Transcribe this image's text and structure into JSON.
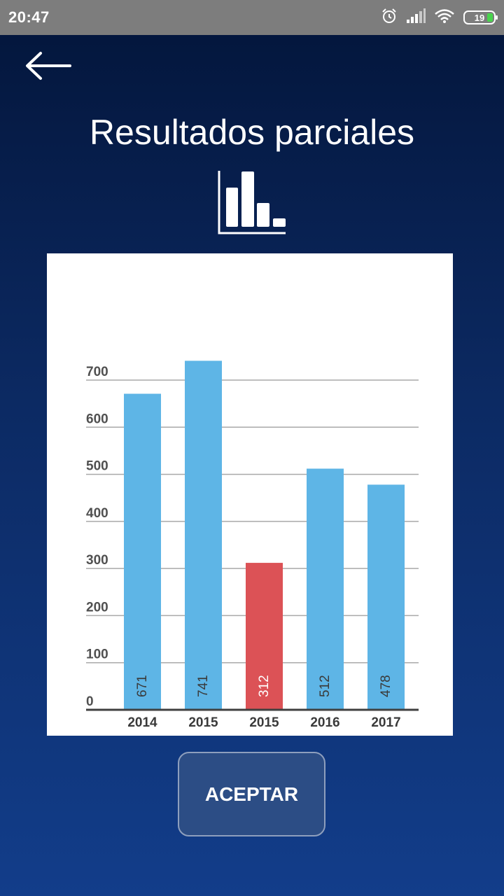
{
  "status_bar": {
    "time": "20:47",
    "battery_level": "19",
    "icons": [
      "alarm-icon",
      "signal-icon",
      "wifi-icon",
      "battery-icon"
    ]
  },
  "header": {
    "back_icon": "back-arrow-icon",
    "title": "Resultados parciales",
    "title_icon": "bar-chart-icon"
  },
  "chart_data": {
    "type": "bar",
    "categories": [
      "2014",
      "2015",
      "2015",
      "2016",
      "2017"
    ],
    "values": [
      671,
      741,
      312,
      512,
      478
    ],
    "data_labels": [
      "671",
      "741",
      "312",
      "512",
      "478"
    ],
    "bar_colors": [
      "#5eb5e6",
      "#5eb5e6",
      "#dc5256",
      "#5eb5e6",
      "#5eb5e6"
    ],
    "y_ticks": [
      "0",
      "100",
      "200",
      "300",
      "400",
      "500",
      "600",
      "700"
    ],
    "y_tick_values": [
      0,
      100,
      200,
      300,
      400,
      500,
      600,
      700
    ],
    "ylim": [
      0,
      700
    ],
    "grid": true,
    "title": "",
    "xlabel": "",
    "ylabel": ""
  },
  "actions": {
    "accept_label": "ACEPTAR"
  },
  "colors": {
    "background_top": "#03153a",
    "background_bottom": "#123d8a",
    "bar_default": "#5eb5e6",
    "bar_highlight": "#dc5256",
    "button_fill": "#2c4d85"
  }
}
